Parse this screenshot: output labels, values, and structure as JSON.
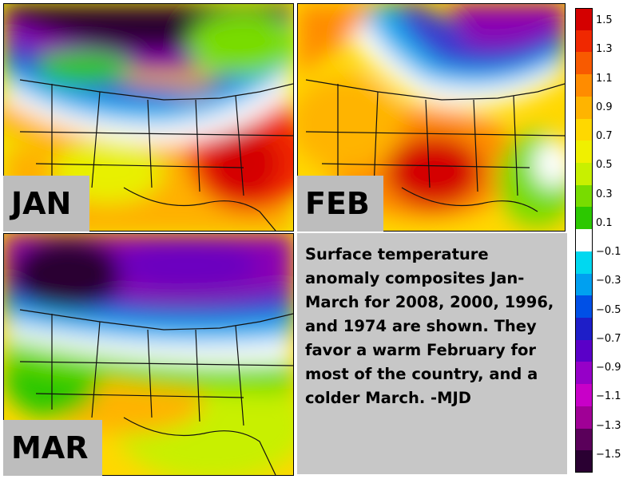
{
  "panels": [
    {
      "id": "jan",
      "label": "JAN"
    },
    {
      "id": "feb",
      "label": "FEB"
    },
    {
      "id": "mar",
      "label": "MAR"
    }
  ],
  "caption": "Surface temperature anomaly composites Jan-March for 2008, 2000, 1996, and 1974 are shown. They favor a warm February for most of the country, and a colder March. -MJD",
  "colorbar": {
    "ticks": [
      "1.5",
      "1.3",
      "1.1",
      "0.9",
      "0.7",
      "0.5",
      "0.3",
      "0.1",
      "−0.1",
      "−0.3",
      "−0.5",
      "−0.7",
      "−0.9",
      "−1.1",
      "−1.3",
      "−1.5"
    ],
    "colors": [
      "#d40000",
      "#f02800",
      "#f85a00",
      "#ff8c00",
      "#ffb400",
      "#ffd800",
      "#f0f000",
      "#c8f000",
      "#78dc00",
      "#2cc800",
      "#ffffff",
      "#00d8f0",
      "#00a0f0",
      "#0050e6",
      "#1e1ec8",
      "#5a00c8",
      "#9600c8",
      "#c800c8",
      "#a00096",
      "#5a005a",
      "#2a0032"
    ]
  }
}
